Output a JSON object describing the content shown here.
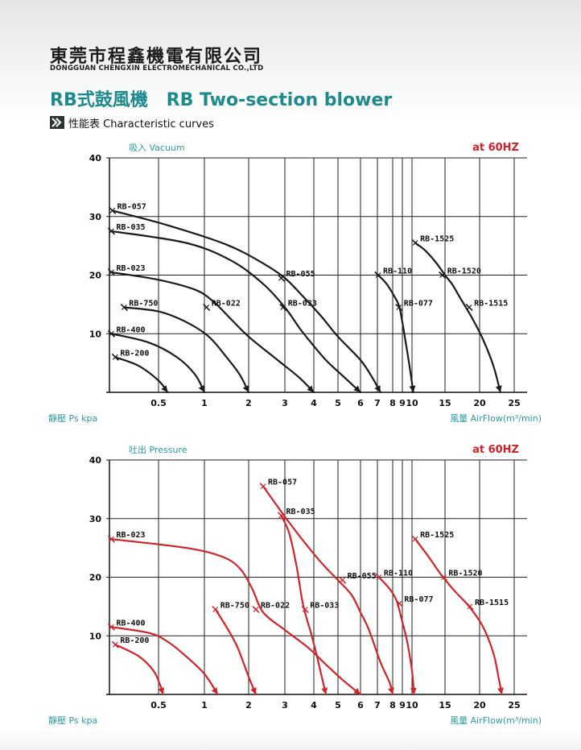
{
  "header": {
    "company_zh": "東莞市程鑫機電有限公司",
    "company_en": "DONGGUAN CHENGXIN ELECTROMECHANICAL CO.,LTD",
    "title": "RB式鼓風機   RB Two-section blower",
    "subtitle": "性能表 Characteristic curves",
    "title_color": "#1d8a8e",
    "arrow_icon": "double-arrow-right-icon"
  },
  "chart_data": [
    {
      "type": "line",
      "title": "吸入 Vacuum",
      "frequency_label": "at 60HZ",
      "ylabel": "靜壓 Ps kpa",
      "xlabel": "風量 AirFlow(m³/min)",
      "ylim": [
        0,
        40
      ],
      "y_ticks": [
        10,
        20,
        30,
        40
      ],
      "x_tick_labels": [
        "0.5",
        "1",
        "2",
        "3",
        "4",
        "5",
        "6",
        "7",
        "8",
        "9",
        "10",
        "15",
        "20",
        "25"
      ],
      "x_scale": "non-linear",
      "grid": true,
      "line_color": "#1a1a1a",
      "series": [
        {
          "name": "RB-057",
          "label_at": [
            0.03,
            31
          ],
          "x": [
            0.03,
            0.6,
            1.5,
            2.4,
            3.0,
            3.6,
            4.3,
            5.0,
            6.0,
            6.7,
            7.2
          ],
          "y": [
            31,
            28.5,
            25.2,
            22,
            19.5,
            16.5,
            13,
            9.5,
            5.5,
            2.5,
            0
          ]
        },
        {
          "name": "RB-035",
          "label_at": [
            0.02,
            27.5
          ],
          "x": [
            0.02,
            0.8,
            1.6,
            2.4,
            3.0,
            3.5,
            3.9,
            4.5,
            5.3,
            6.0
          ],
          "y": [
            27.5,
            25.5,
            22.5,
            18.5,
            14.5,
            11,
            8.5,
            5.5,
            2.5,
            0
          ]
        },
        {
          "name": "RB-023",
          "label_at": [
            0.02,
            20.5
          ],
          "x": [
            0.02,
            0.5,
            0.9,
            1.2,
            1.6,
            2.0,
            2.8,
            3.5,
            4.0
          ],
          "y": [
            20.5,
            19.2,
            17.5,
            15.5,
            12.5,
            9.5,
            5.5,
            2.5,
            0
          ]
        },
        {
          "name": "RB-750",
          "label_at": [
            0.15,
            14.5
          ],
          "x": [
            0.15,
            0.5,
            0.8,
            1.1,
            1.5,
            1.8,
            2.0
          ],
          "y": [
            14.5,
            13.8,
            12,
            9.5,
            6,
            3,
            0
          ]
        },
        {
          "name": "RB-400",
          "label_at": [
            0.02,
            10
          ],
          "x": [
            0.02,
            0.4,
            0.7,
            0.9,
            1.0
          ],
          "y": [
            10,
            8.5,
            6,
            3,
            0
          ]
        },
        {
          "name": "RB-200",
          "label_at": [
            0.06,
            6
          ],
          "x": [
            0.06,
            0.3,
            0.5,
            0.6
          ],
          "y": [
            6,
            4.5,
            2,
            0
          ]
        },
        {
          "name": "RB-022",
          "label_at": [
            1.05,
            14.5
          ]
        },
        {
          "name": "RB-055",
          "label_at": [
            2.9,
            19.5
          ]
        },
        {
          "name": "RB-033",
          "label_at": [
            2.95,
            14.5
          ]
        },
        {
          "name": "RB-110",
          "label_at": [
            7.05,
            20
          ],
          "x": [
            7.05,
            7.6,
            8.3,
            8.7,
            9.1,
            9.6,
            10.2
          ],
          "y": [
            20,
            18.5,
            16,
            14.5,
            11,
            6,
            0
          ]
        },
        {
          "name": "RB-077",
          "label_at": [
            8.65,
            14.5
          ]
        },
        {
          "name": "RB-1525",
          "label_at": [
            10.5,
            25.5
          ],
          "x": [
            10.5,
            12,
            13.6,
            15,
            16,
            17,
            17.5,
            19,
            20.5,
            22,
            23
          ],
          "y": [
            25.5,
            24.2,
            22.2,
            20,
            18.5,
            16.5,
            15.5,
            12.5,
            9,
            4.5,
            0
          ]
        },
        {
          "name": "RB-1520",
          "label_at": [
            14.6,
            20
          ]
        },
        {
          "name": "RB-1515",
          "label_at": [
            18.5,
            14.5
          ]
        }
      ]
    },
    {
      "type": "line",
      "title": "吐出 Pressure",
      "frequency_label": "at 60HZ",
      "ylabel": "靜壓 Ps kpa",
      "xlabel": "風量 AirFlow(m³/min)",
      "ylim": [
        0,
        40
      ],
      "y_ticks": [
        10,
        20,
        30,
        40
      ],
      "x_tick_labels": [
        "0.5",
        "1",
        "2",
        "3",
        "4",
        "5",
        "6",
        "7",
        "8",
        "9",
        "10",
        "15",
        "20",
        "25"
      ],
      "x_scale": "non-linear",
      "grid": true,
      "line_color": "#d02428",
      "series": [
        {
          "name": "RB-023",
          "label_at": [
            0.02,
            26.5
          ],
          "x": [
            0.02,
            0.8,
            1.4,
            1.8,
            2.1,
            2.4,
            3.0,
            3.8,
            4.4,
            5.2,
            6.0
          ],
          "y": [
            26.5,
            25,
            23.5,
            21.5,
            18,
            14,
            11,
            8,
            5.5,
            2.5,
            0
          ]
        },
        {
          "name": "RB-057",
          "label_at": [
            2.4,
            35.5
          ],
          "x": [
            2.4,
            3.2,
            4.2,
            5.0,
            5.6,
            6.0,
            6.5,
            7.2,
            7.8,
            8.0
          ],
          "y": [
            35.5,
            29,
            23,
            19.5,
            17,
            14,
            11,
            5.5,
            2,
            0
          ]
        },
        {
          "name": "RB-035",
          "label_at": [
            2.9,
            30.5
          ],
          "x": [
            2.9,
            3.15,
            3.4,
            3.6,
            3.75,
            3.9,
            4.1,
            4.3,
            4.5
          ],
          "y": [
            30.5,
            27.5,
            22,
            16,
            13,
            10.5,
            7,
            3.5,
            0
          ]
        },
        {
          "name": "RB-750",
          "label_at": [
            1.25,
            14.5
          ],
          "x": [
            1.25,
            1.5,
            1.75,
            2.0,
            2.2
          ],
          "y": [
            14.5,
            11.5,
            8,
            3,
            0
          ]
        },
        {
          "name": "RB-400",
          "label_at": [
            0.02,
            11.5
          ],
          "x": [
            0.02,
            0.4,
            0.6,
            0.8,
            1.0,
            1.3
          ],
          "y": [
            11.5,
            10.5,
            9,
            6.5,
            3.5,
            0
          ]
        },
        {
          "name": "RB-200",
          "label_at": [
            0.06,
            8.5
          ],
          "x": [
            0.06,
            0.3,
            0.45,
            0.52,
            0.55
          ],
          "y": [
            8.5,
            6.5,
            4,
            1.5,
            0
          ]
        },
        {
          "name": "RB-022",
          "label_at": [
            2.2,
            14.5
          ]
        },
        {
          "name": "RB-033",
          "label_at": [
            3.7,
            14.5
          ]
        },
        {
          "name": "RB-055",
          "label_at": [
            5.2,
            19.5
          ]
        },
        {
          "name": "RB-110",
          "label_at": [
            7.1,
            20
          ],
          "x": [
            7.1,
            7.8,
            8.4,
            8.9,
            9.5,
            10.0,
            10.3
          ],
          "y": [
            20,
            18,
            16,
            13,
            9,
            4,
            0
          ]
        },
        {
          "name": "RB-077",
          "label_at": [
            8.7,
            15.5
          ]
        },
        {
          "name": "RB-1525",
          "label_at": [
            10.5,
            26.5
          ],
          "x": [
            10.5,
            12.5,
            14.5,
            16.5,
            18.5,
            20.5,
            22,
            22.8,
            23.2
          ],
          "y": [
            26.5,
            23.5,
            20.3,
            17.5,
            15,
            11.5,
            7,
            2.5,
            0
          ]
        },
        {
          "name": "RB-1520",
          "label_at": [
            14.8,
            20
          ]
        },
        {
          "name": "RB-1515",
          "label_at": [
            18.6,
            15
          ]
        }
      ]
    }
  ]
}
